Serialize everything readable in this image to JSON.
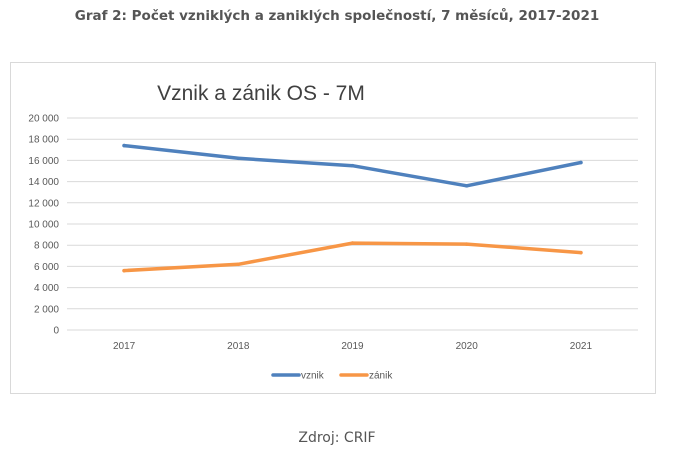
{
  "heading": "Graf 2: Počet vzniklých a zaniklých společností, 7 měsíců, 2017-2021",
  "source": "Zdroj: CRIF",
  "chart_data": {
    "type": "line",
    "title": "Vznik a zánik OS - 7M",
    "xlabel": "",
    "ylabel": "",
    "categories": [
      "2017",
      "2018",
      "2019",
      "2020",
      "2021"
    ],
    "ylim": [
      0,
      20000
    ],
    "ytick_values": [
      0,
      2000,
      4000,
      6000,
      8000,
      10000,
      12000,
      14000,
      16000,
      18000,
      20000
    ],
    "ytick_labels": [
      "0",
      "2 000",
      "4 000",
      "6 000",
      "8 000",
      "10 000",
      "12 000",
      "14 000",
      "16 000",
      "18 000",
      "20 000"
    ],
    "grid": true,
    "legend_position": "bottom",
    "series": [
      {
        "name": "vznik",
        "color": "#4f81bd",
        "values": [
          17400,
          16200,
          15500,
          13600,
          15800
        ]
      },
      {
        "name": "zánik",
        "color": "#f79646",
        "values": [
          5600,
          6200,
          8200,
          8100,
          7300
        ]
      }
    ]
  }
}
